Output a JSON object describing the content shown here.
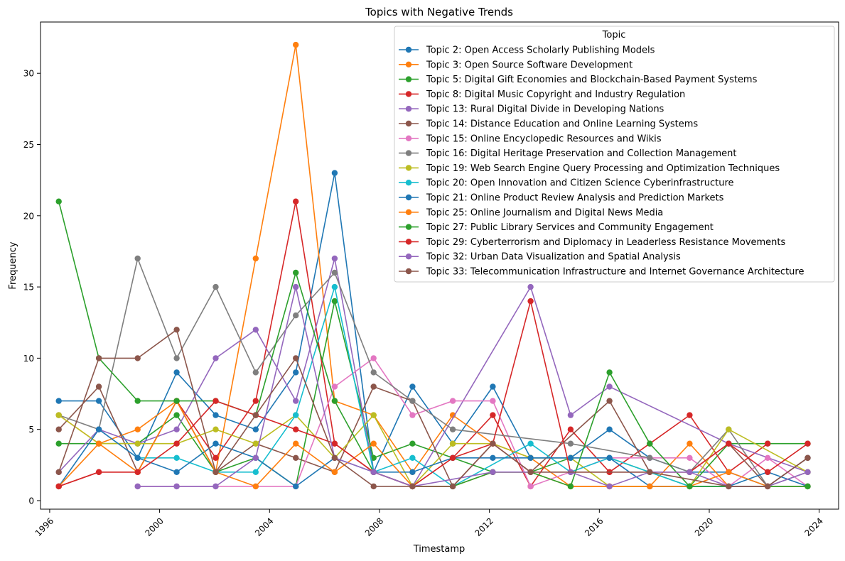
{
  "chart_data": {
    "type": "line",
    "title": "Topics with Negative Trends",
    "xlabel": "Timestamp",
    "ylabel": "Frequency",
    "x_ticks": [
      "1996",
      "2000",
      "2004",
      "2008",
      "2012",
      "2016",
      "2020",
      "2024"
    ],
    "y_ticks": [
      "0",
      "5",
      "10",
      "15",
      "20",
      "25",
      "30"
    ],
    "xlim": [
      "1995-09-01",
      "2024-09-15"
    ],
    "ylim": [
      -0.6,
      33.6
    ],
    "grid": false,
    "legend": {
      "title": "Topic",
      "position": "top-right"
    },
    "x": [
      "1996-05-01",
      "1997-10-15",
      "1999-03-15",
      "2000-08-15",
      "2002-01-15",
      "2003-07-01",
      "2004-12-15",
      "2006-05-15",
      "2007-10-15",
      "2009-03-15",
      "2010-09-01",
      "2012-02-15",
      "2013-07-01",
      "2014-12-15",
      "2016-05-15",
      "2017-11-01",
      "2019-04-15",
      "2020-09-15",
      "2022-02-15",
      "2023-08-01"
    ],
    "series": [
      {
        "name": "Topic 2: Open Access Scholarly Publishing Models",
        "color": "#1f77b4",
        "values": [
          7,
          7,
          3,
          9,
          6,
          5,
          9,
          23,
          2,
          8,
          4,
          8,
          3,
          3,
          5,
          3,
          2,
          2,
          1,
          3
        ]
      },
      {
        "name": "Topic 3: Open Source Software Development",
        "color": "#ff7f0e",
        "values": [
          6,
          4,
          5,
          7,
          2,
          17,
          32,
          7,
          6,
          2,
          6,
          4,
          3,
          1,
          1,
          1,
          4,
          1,
          1,
          null
        ]
      },
      {
        "name": "Topic 5: Digital Gift Economies and Blockchain-Based Payment Systems",
        "color": "#2ca02c",
        "values": [
          4,
          4,
          4,
          6,
          2,
          3,
          1,
          14,
          3,
          4,
          3,
          2,
          2,
          3,
          3,
          null,
          1,
          4,
          4,
          4
        ]
      },
      {
        "name": "Topic 8: Digital Music Copyright and Industry Regulation",
        "color": "#d62728",
        "values": [
          1,
          2,
          2,
          7,
          3,
          7,
          21,
          4,
          2,
          1,
          3,
          6,
          1,
          5,
          2,
          4,
          6,
          2,
          4,
          null
        ]
      },
      {
        "name": "Topic 13: Rural Digital Divide in Developing Nations",
        "color": "#9467bd",
        "values": [
          2,
          5,
          4,
          5,
          10,
          12,
          7,
          17,
          2,
          1,
          null,
          null,
          15,
          6,
          8,
          null,
          null,
          4,
          null,
          2
        ]
      },
      {
        "name": "Topic 14: Distance Education and Online Learning Systems",
        "color": "#8c564b",
        "values": [
          5,
          8,
          2,
          7,
          2,
          4,
          3,
          2,
          8,
          7,
          1,
          4,
          2,
          null,
          7,
          2,
          2,
          4,
          1,
          3
        ]
      },
      {
        "name": "Topic 15: Online Encyclopedic Resources and Wikis",
        "color": "#e377c2",
        "values": [
          null,
          null,
          1,
          1,
          1,
          1,
          1,
          8,
          10,
          6,
          7,
          7,
          1,
          null,
          3,
          3,
          3,
          1,
          3,
          1
        ]
      },
      {
        "name": "Topic 16: Digital Heritage Preservation and Collection Management",
        "color": "#7f7f7f",
        "values": [
          6,
          5,
          17,
          10,
          15,
          9,
          13,
          16,
          9,
          7,
          5,
          null,
          null,
          4,
          null,
          3,
          2,
          5,
          1,
          2
        ]
      },
      {
        "name": "Topic 19: Web Search Engine Query Processing and Optimization Techniques",
        "color": "#bcbd22",
        "values": [
          6,
          4,
          4,
          4,
          5,
          4,
          6,
          3,
          6,
          1,
          4,
          4,
          3,
          3,
          1,
          null,
          1,
          5,
          null,
          2
        ]
      },
      {
        "name": "Topic 20: Open Innovation and Citizen Science Cyberinfrastructure",
        "color": "#17becf",
        "values": [
          null,
          null,
          3,
          3,
          2,
          2,
          6,
          15,
          2,
          3,
          1,
          null,
          4,
          2,
          3,
          null,
          1,
          null,
          null,
          1
        ]
      },
      {
        "name": "Topic 21: Online Product Review Analysis and Prediction Markets",
        "color": "#1f77b4",
        "values": [
          1,
          5,
          3,
          2,
          4,
          3,
          1,
          3,
          2,
          2,
          3,
          3,
          3,
          3,
          3,
          1,
          1,
          1,
          2,
          1
        ]
      },
      {
        "name": "Topic 25: Online Journalism and Digital News Media",
        "color": "#ff7f0e",
        "values": [
          1,
          4,
          2,
          7,
          2,
          1,
          4,
          2,
          4,
          1,
          1,
          2,
          2,
          1,
          1,
          1,
          1,
          2,
          1,
          1
        ]
      },
      {
        "name": "Topic 27: Public Library Services and Community Engagement",
        "color": "#2ca02c",
        "values": [
          21,
          10,
          7,
          7,
          7,
          6,
          16,
          7,
          2,
          1,
          1,
          2,
          2,
          1,
          9,
          4,
          1,
          null,
          null,
          1
        ]
      },
      {
        "name": "Topic 29: Cyberterrorism and Diplomacy in Leaderless Resistance Movements",
        "color": "#d62728",
        "values": [
          1,
          2,
          2,
          4,
          7,
          6,
          5,
          4,
          2,
          1,
          3,
          4,
          14,
          2,
          2,
          2,
          2,
          4,
          2,
          4
        ]
      },
      {
        "name": "Topic 32: Urban Data Visualization and Spatial Analysis",
        "color": "#9467bd",
        "values": [
          null,
          null,
          1,
          1,
          1,
          3,
          15,
          3,
          2,
          1,
          null,
          2,
          2,
          2,
          1,
          2,
          2,
          1,
          1,
          2
        ]
      },
      {
        "name": "Topic 33: Telecommunication Infrastructure and Internet Governance Architecture",
        "color": "#8c564b",
        "values": [
          2,
          10,
          10,
          12,
          2,
          6,
          10,
          3,
          1,
          1,
          1,
          4,
          2,
          null,
          null,
          2,
          null,
          1,
          1,
          3
        ]
      }
    ]
  }
}
